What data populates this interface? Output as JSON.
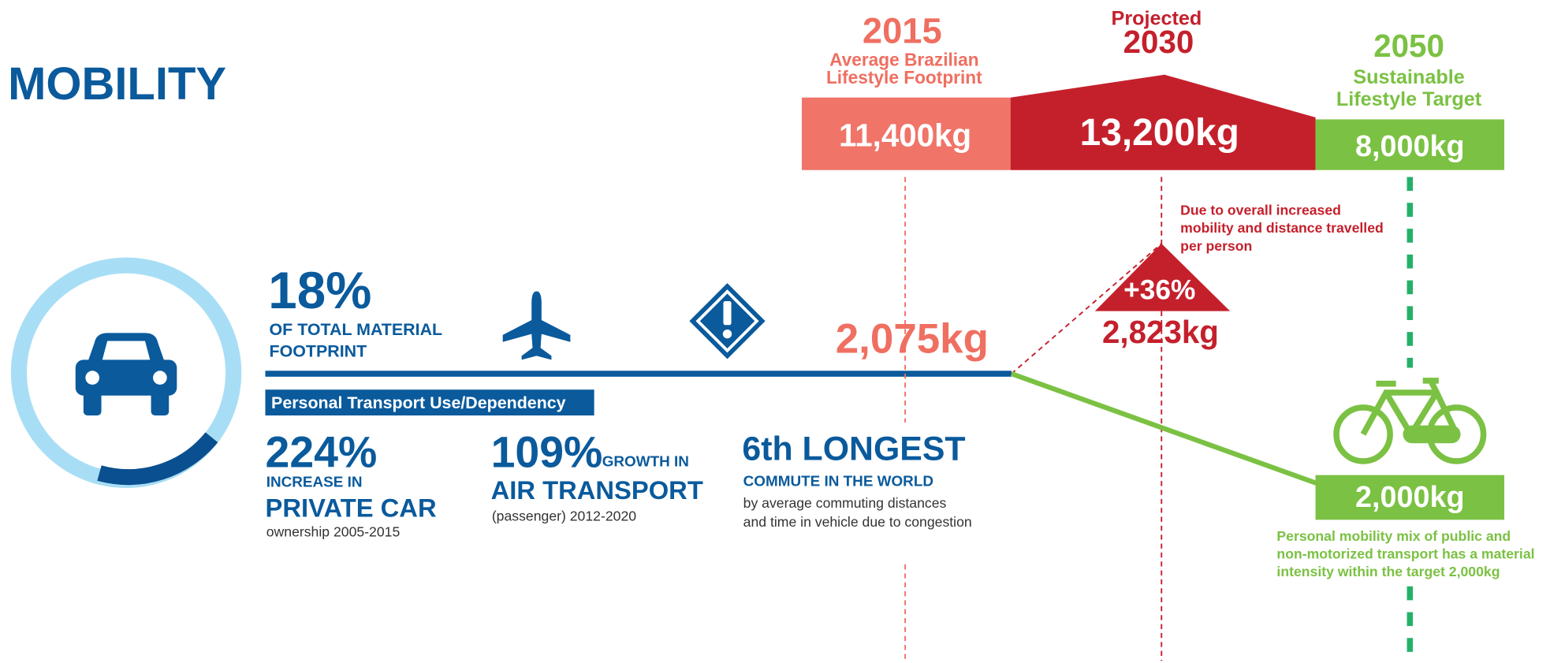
{
  "title": "MOBILITY",
  "share": {
    "value": "18%",
    "lines": [
      "OF TOTAL MATERIAL",
      "FOOTPRINT"
    ]
  },
  "banner": "Personal Transport Use/Dependency",
  "car_stat": {
    "value": "224%",
    "lines": [
      "INCREASE IN",
      "PRIVATE CAR",
      "ownership 2005-2015"
    ]
  },
  "air_stat": {
    "value": "109%",
    "lines": [
      "GROWTH IN",
      "AIR TRANSPORT",
      "(passenger) 2012-2020"
    ]
  },
  "commute_stat": {
    "value": "6th LONGEST",
    "lines": [
      "COMMUTE IN THE WORLD",
      "by average commuting distances",
      "and time in vehicle due to congestion"
    ]
  },
  "current": "2,075kg",
  "timeline": [
    {
      "year": "2015",
      "lines": [
        "Average Brazilian",
        "Lifestyle Footprint"
      ],
      "amount": "11,400kg"
    },
    {
      "prefix": "Projected",
      "year": "2030",
      "amount": "13,200kg"
    },
    {
      "year": "2050",
      "lines": [
        "Sustainable",
        "Lifestyle Target"
      ],
      "amount": "8,000kg"
    }
  ],
  "increase": {
    "note": [
      "Due to overall increased",
      "mobility and distance travelled",
      "per person"
    ],
    "change": "+36%",
    "amount": "2,823kg"
  },
  "target": {
    "amount": "2,000kg",
    "note": [
      "Personal mobility mix of public and",
      "non-motorized transport has a material",
      "intensity within the target 2,000kg"
    ]
  }
}
